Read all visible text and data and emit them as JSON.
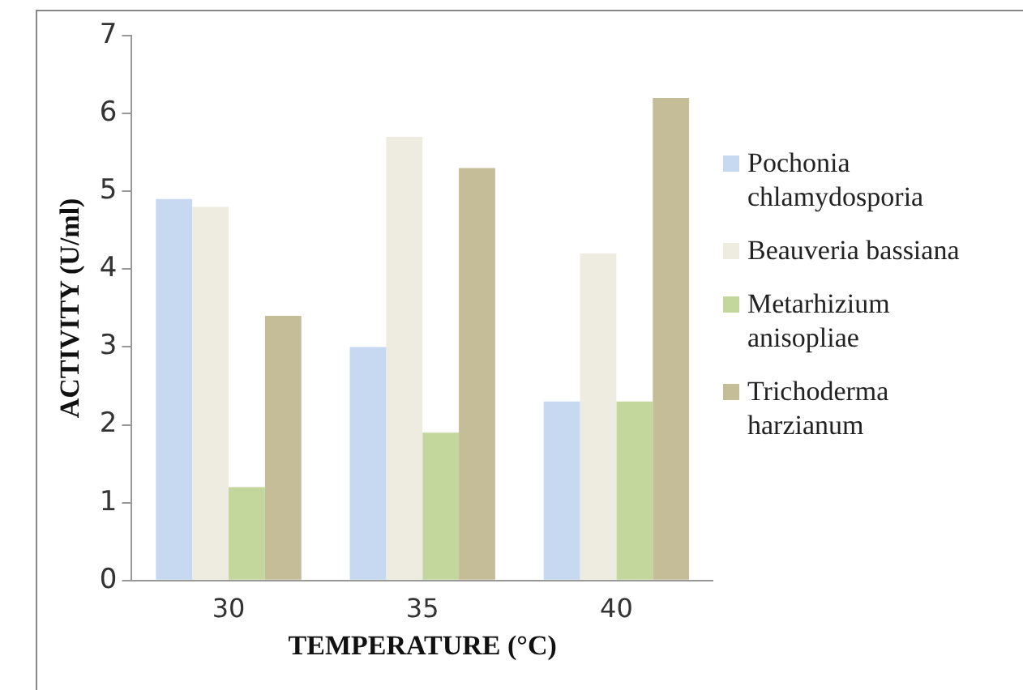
{
  "chart_data": {
    "type": "bar",
    "xlabel": "TEMPERATURE (°C)",
    "ylabel": "ACTIVITY (U/ml)",
    "categories": [
      "30",
      "35",
      "40"
    ],
    "series": [
      {
        "name": "Pochonia chlamydosporia",
        "color": "#c6d9f1",
        "values": [
          4.9,
          3.0,
          2.3
        ]
      },
      {
        "name": "Beauveria bassiana",
        "color": "#eeece1",
        "values": [
          4.8,
          5.7,
          4.2
        ]
      },
      {
        "name": "Metarhizium anisopliae",
        "color": "#c3d69b",
        "values": [
          1.2,
          1.9,
          2.3
        ]
      },
      {
        "name": "Trichoderma harzianum",
        "color": "#c4bd97",
        "values": [
          3.4,
          5.3,
          6.2
        ]
      }
    ],
    "ylim": [
      0,
      7
    ],
    "yticks": [
      0,
      1,
      2,
      3,
      4,
      5,
      6,
      7
    ],
    "grid": false,
    "legend": "right"
  }
}
